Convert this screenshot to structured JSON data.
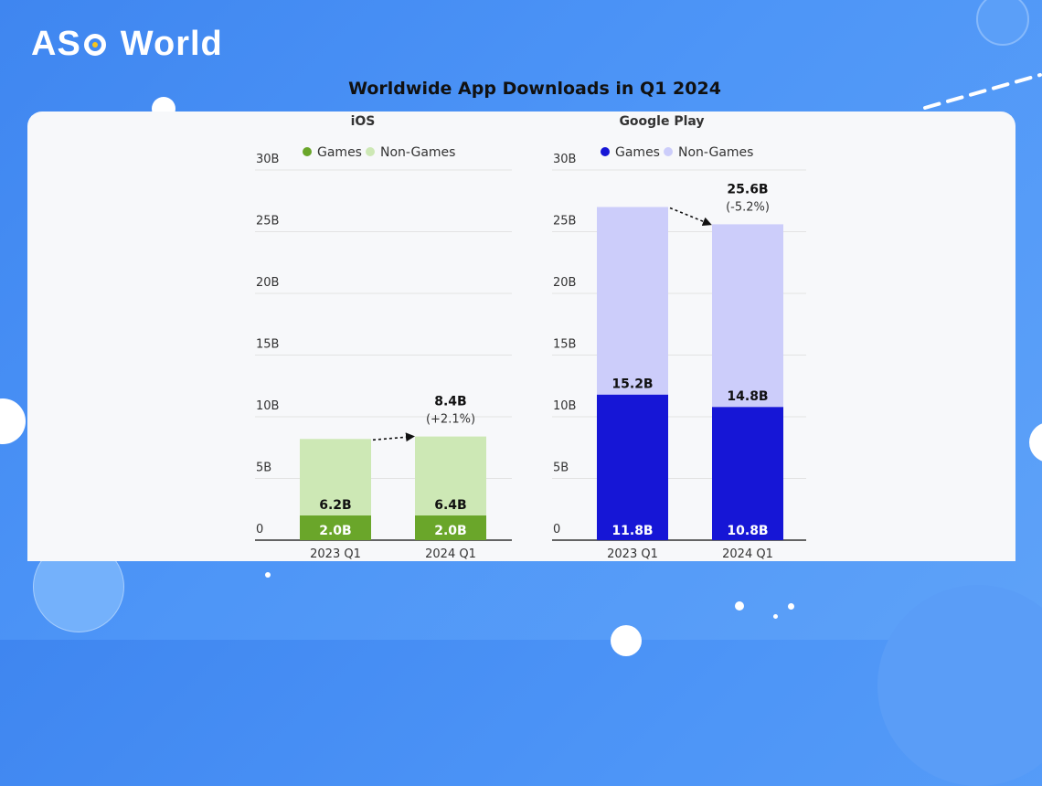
{
  "brand": {
    "logo_part1": "AS",
    "logo_part2": "World"
  },
  "page": {
    "title": "Worldwide App Downloads in Q1 2024"
  },
  "chart_data": [
    {
      "type": "bar",
      "stacked": true,
      "title": "iOS",
      "legend": {
        "position": "top",
        "entries": [
          "Games",
          "Non-Games"
        ]
      },
      "categories": [
        "2023 Q1",
        "2024 Q1"
      ],
      "series": [
        {
          "name": "Games",
          "values": [
            2.0,
            2.0
          ],
          "color": "#6aa62a",
          "labels": [
            "2.0B",
            "2.0B"
          ]
        },
        {
          "name": "Non-Games",
          "values": [
            6.2,
            6.4
          ],
          "color": "#cde8b5",
          "labels": [
            "6.2B",
            "6.4B"
          ]
        }
      ],
      "yticks": [
        "0",
        "5B",
        "10B",
        "15B",
        "20B",
        "25B",
        "30B"
      ],
      "ylim": [
        0,
        30
      ],
      "grid": true,
      "annotation": {
        "total": "8.4B",
        "change": "(+2.1%)"
      }
    },
    {
      "type": "bar",
      "stacked": true,
      "title": "Google Play",
      "legend": {
        "position": "top",
        "entries": [
          "Games",
          "Non-Games"
        ]
      },
      "categories": [
        "2023 Q1",
        "2024 Q1"
      ],
      "series": [
        {
          "name": "Games",
          "values": [
            11.8,
            10.8
          ],
          "color": "#1616d6",
          "labels": [
            "11.8B",
            "10.8B"
          ]
        },
        {
          "name": "Non-Games",
          "values": [
            15.2,
            14.8
          ],
          "color": "#cccdfa",
          "labels": [
            "15.2B",
            "14.8B"
          ]
        }
      ],
      "yticks": [
        "0",
        "5B",
        "10B",
        "15B",
        "20B",
        "25B",
        "30B"
      ],
      "ylim": [
        0,
        30
      ],
      "grid": true,
      "annotation": {
        "total": "25.6B",
        "change": "(-5.2%)"
      }
    }
  ]
}
